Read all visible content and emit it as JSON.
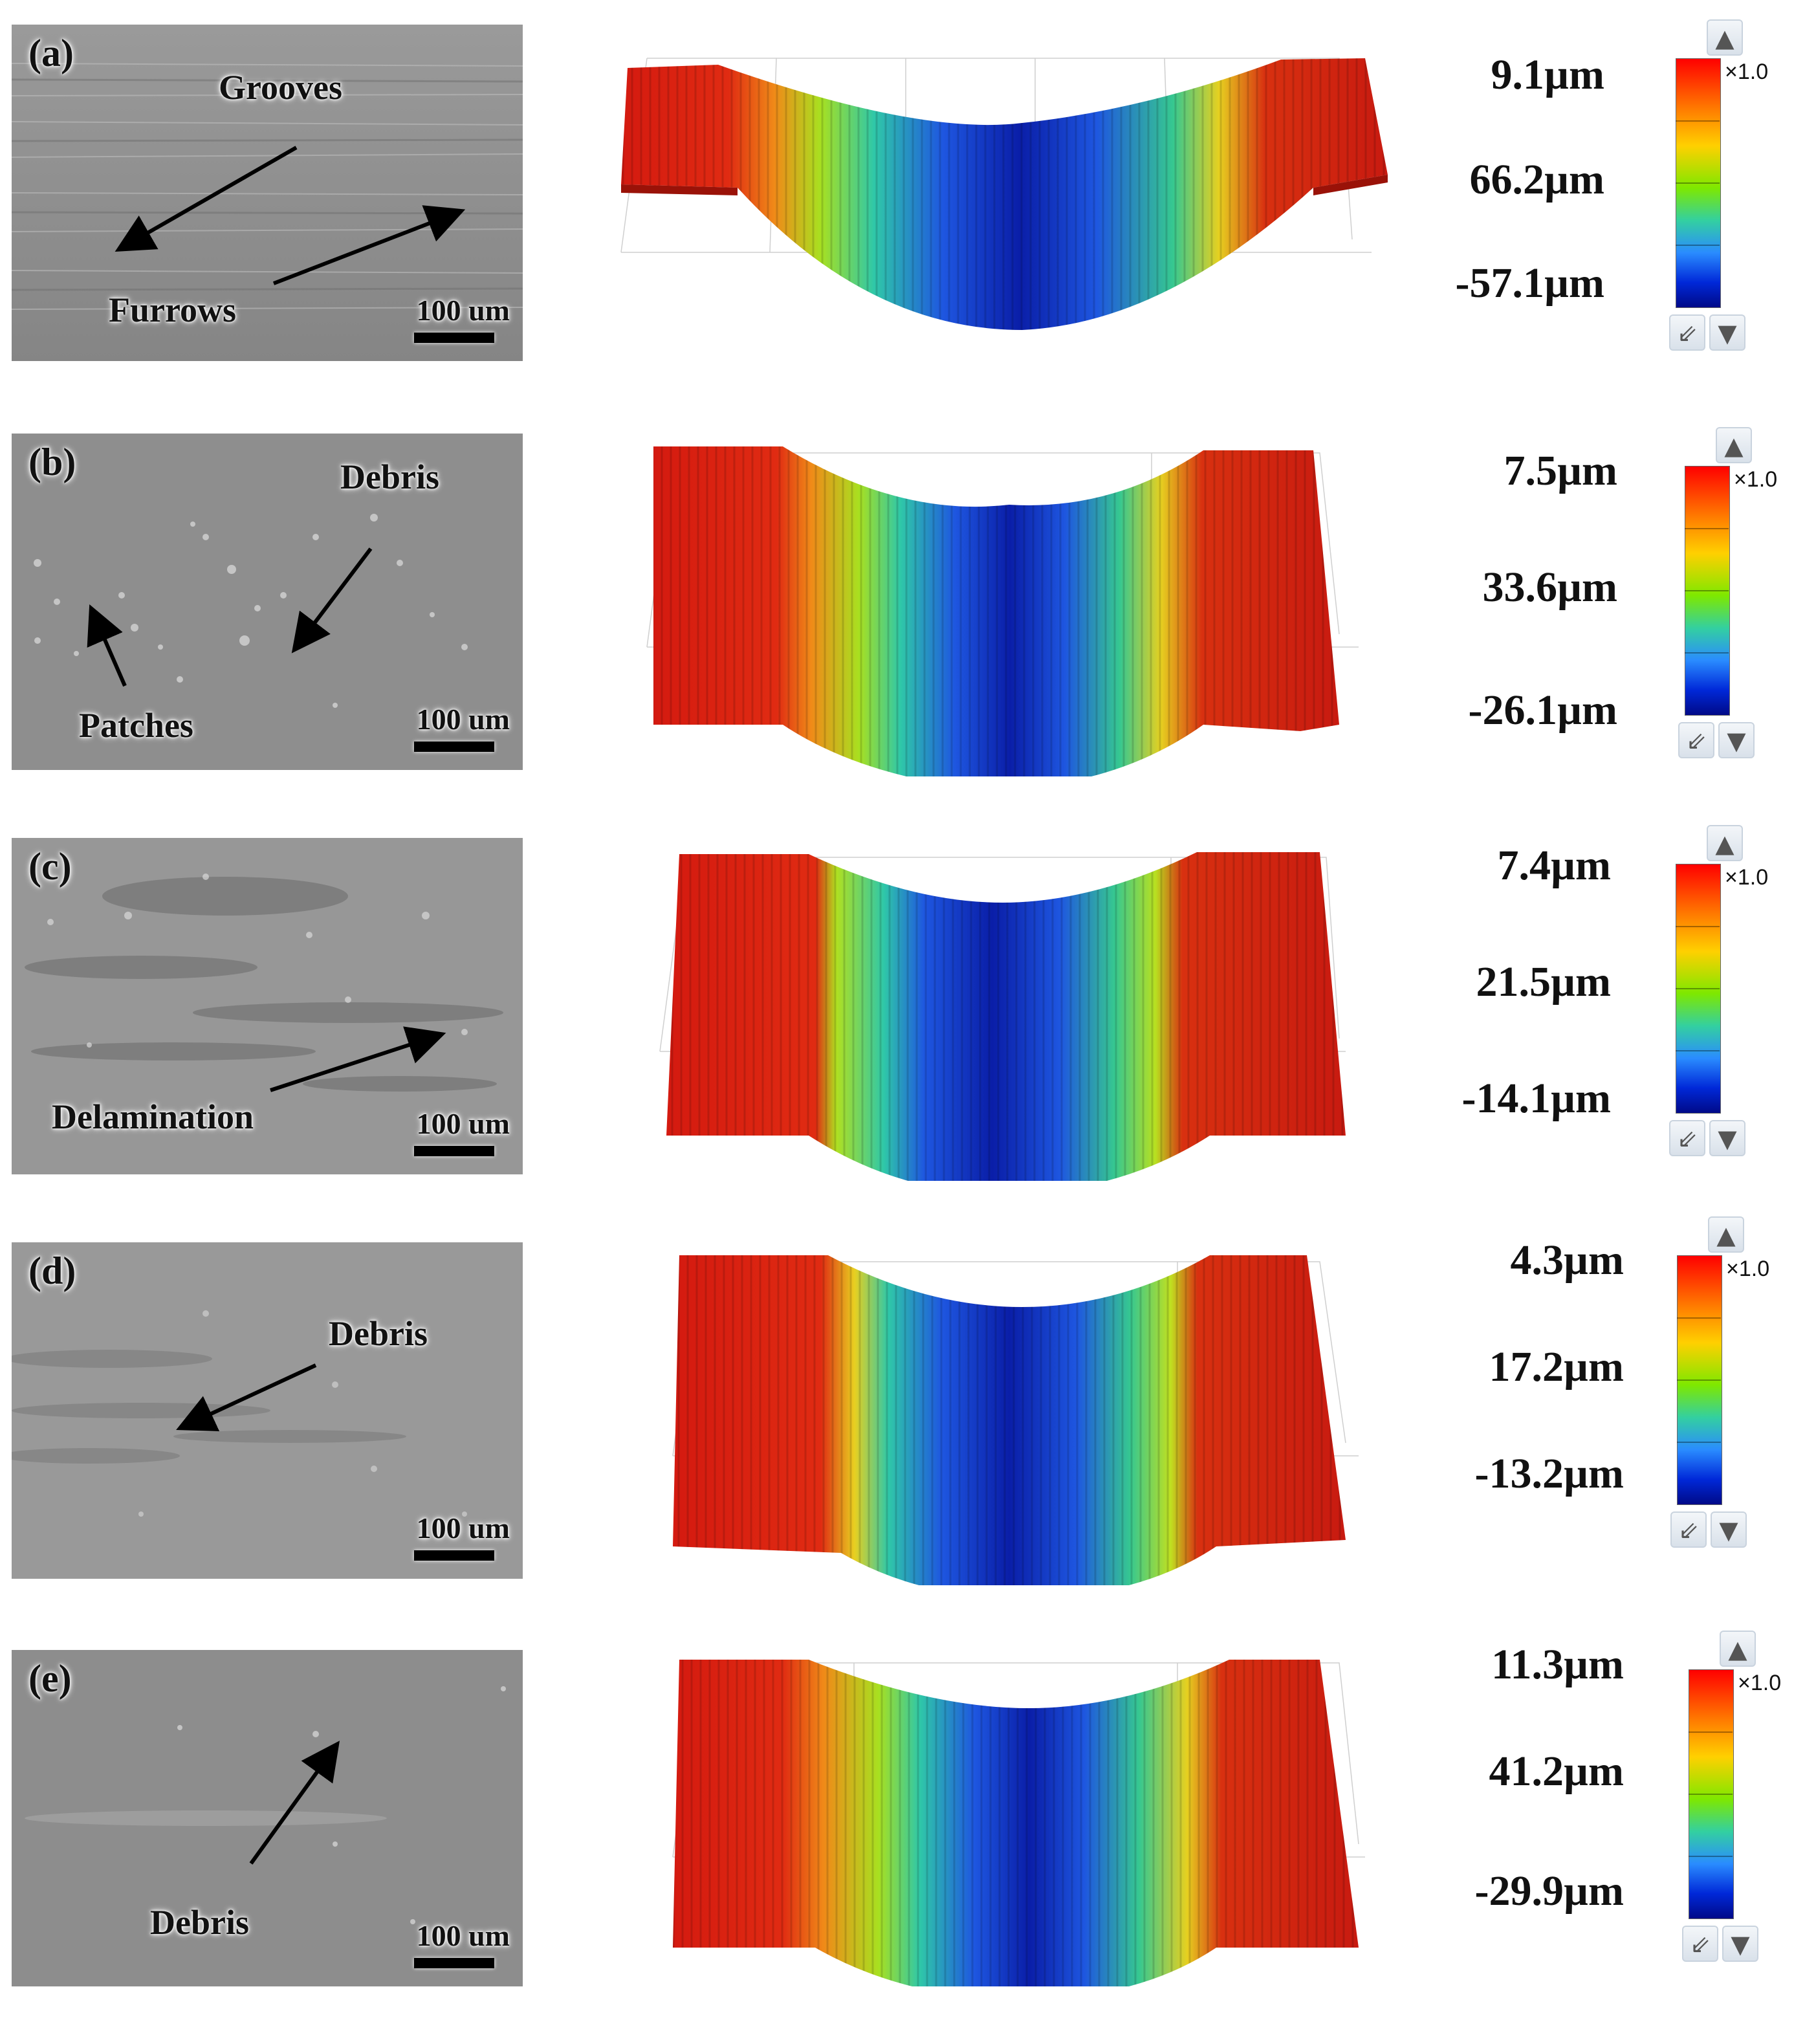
{
  "rows": [
    {
      "tag": "(a)",
      "scale_bar": "100 um",
      "labels": [
        "Grooves",
        "Furrows"
      ],
      "values": [
        "9.1µm",
        "66.2µm",
        "-57.1µm"
      ],
      "multiplier": "×1.0"
    },
    {
      "tag": "(b)",
      "scale_bar": "100 um",
      "labels": [
        "Debris",
        "Patches"
      ],
      "values": [
        "7.5µm",
        "33.6µm",
        "-26.1µm"
      ],
      "multiplier": "×1.0"
    },
    {
      "tag": "(c)",
      "scale_bar": "100 um",
      "labels": [
        "Delamination"
      ],
      "values": [
        "7.4µm",
        "21.5µm",
        "-14.1µm"
      ],
      "multiplier": "×1.0"
    },
    {
      "tag": "(d)",
      "scale_bar": "100 um",
      "labels": [
        "Debris"
      ],
      "values": [
        "4.3µm",
        "17.2µm",
        "-13.2µm"
      ],
      "multiplier": "×1.0"
    },
    {
      "tag": "(e)",
      "scale_bar": "100 um",
      "labels": [
        "Debris"
      ],
      "values": [
        "11.3µm",
        "41.2µm",
        "-29.9µm"
      ],
      "multiplier": "×1.0"
    }
  ],
  "colors": {
    "high": "#ff0000",
    "mid": "#7ee800",
    "low": "#000a88",
    "sem_gray": "#8f8f8f"
  },
  "icons": {
    "scale_up": "arrow-up-icon",
    "scale_reset": "diagonal-arrow-icon",
    "scale_down": "arrow-down-icon"
  }
}
